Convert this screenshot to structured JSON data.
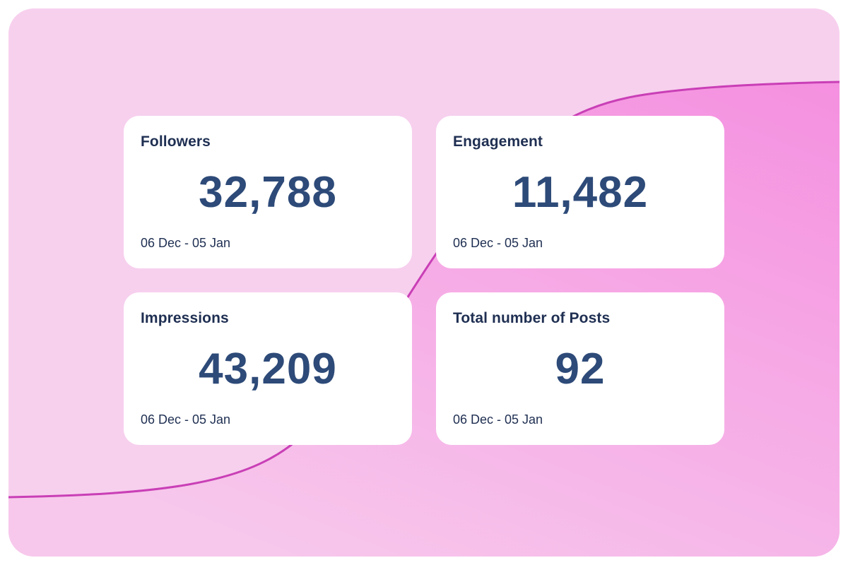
{
  "colors": {
    "background": "#f7d0ee",
    "curve": "#c93fb6",
    "card": "#ffffff",
    "title": "#1f2f52",
    "value": "#2d4a78"
  },
  "metrics": [
    {
      "title": "Followers",
      "value": "32,788",
      "date_range": "06 Dec - 05 Jan"
    },
    {
      "title": "Engagement",
      "value": "11,482",
      "date_range": "06 Dec - 05 Jan"
    },
    {
      "title": "Impressions",
      "value": "43,209",
      "date_range": "06 Dec - 05 Jan"
    },
    {
      "title": "Total number of Posts",
      "value": "92",
      "date_range": "06 Dec - 05 Jan"
    }
  ]
}
